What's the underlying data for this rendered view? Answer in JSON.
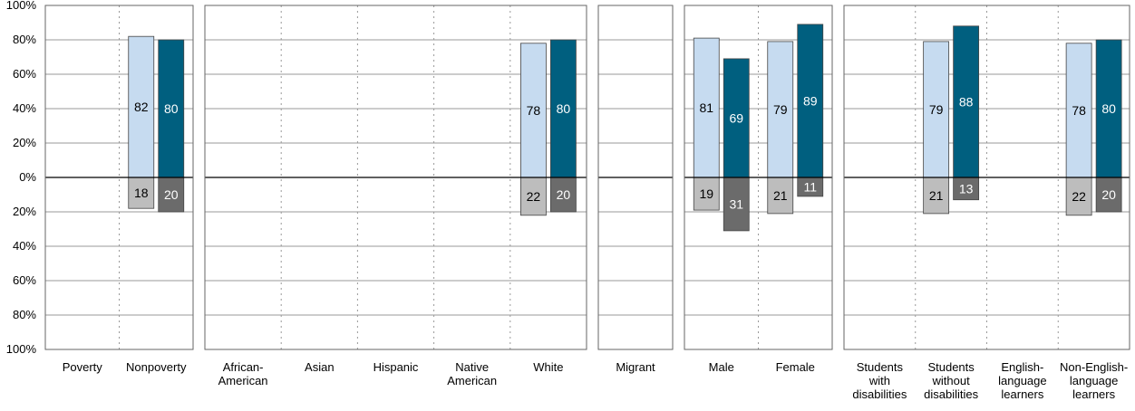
{
  "chart_data": {
    "type": "bar",
    "ylim": [
      -100,
      100
    ],
    "y_ticks": [
      {
        "value": 100,
        "label": "100%"
      },
      {
        "value": 80,
        "label": "80%"
      },
      {
        "value": 60,
        "label": "60%"
      },
      {
        "value": 40,
        "label": "40%"
      },
      {
        "value": 20,
        "label": "20%"
      },
      {
        "value": 0,
        "label": "0%"
      },
      {
        "value": -20,
        "label": "20%"
      },
      {
        "value": -40,
        "label": "40%"
      },
      {
        "value": -60,
        "label": "60%"
      },
      {
        "value": -80,
        "label": "80%"
      },
      {
        "value": -100,
        "label": "100%"
      }
    ],
    "grid": true,
    "colors": {
      "light_positive": "#c6dbf0",
      "dark_positive": "#005f7f",
      "light_negative": "#bdbdbd",
      "dark_negative": "#6b6b6b",
      "light_text": "#000000",
      "dark_text": "#ffffff"
    },
    "panels": [
      {
        "id": "poverty",
        "categories": [
          {
            "label": [
              "Poverty"
            ],
            "bars": []
          },
          {
            "label": [
              "Nonpoverty"
            ],
            "bars": [
              {
                "shade": "light",
                "positive": 82,
                "negative": 18
              },
              {
                "shade": "dark",
                "positive": 80,
                "negative": 20
              }
            ]
          }
        ]
      },
      {
        "id": "race",
        "categories": [
          {
            "label": [
              "African-",
              "American"
            ],
            "bars": []
          },
          {
            "label": [
              "Asian"
            ],
            "bars": []
          },
          {
            "label": [
              "Hispanic"
            ],
            "bars": []
          },
          {
            "label": [
              "Native",
              "American"
            ],
            "bars": []
          },
          {
            "label": [
              "White"
            ],
            "bars": [
              {
                "shade": "light",
                "positive": 78,
                "negative": 22
              },
              {
                "shade": "dark",
                "positive": 80,
                "negative": 20
              }
            ]
          }
        ]
      },
      {
        "id": "migrant",
        "categories": [
          {
            "label": [
              "Migrant"
            ],
            "bars": []
          }
        ]
      },
      {
        "id": "gender",
        "categories": [
          {
            "label": [
              "Male"
            ],
            "bars": [
              {
                "shade": "light",
                "positive": 81,
                "negative": 19
              },
              {
                "shade": "dark",
                "positive": 69,
                "negative": 31
              }
            ]
          },
          {
            "label": [
              "Female"
            ],
            "bars": [
              {
                "shade": "light",
                "positive": 79,
                "negative": 21
              },
              {
                "shade": "dark",
                "positive": 89,
                "negative": 11
              }
            ]
          }
        ]
      },
      {
        "id": "disability-language",
        "categories": [
          {
            "label": [
              "Students",
              "with",
              "disabilities"
            ],
            "bars": []
          },
          {
            "label": [
              "Students",
              "without",
              "disabilities"
            ],
            "bars": [
              {
                "shade": "light",
                "positive": 79,
                "negative": 21
              },
              {
                "shade": "dark",
                "positive": 88,
                "negative": 13
              }
            ]
          },
          {
            "label": [
              "English-",
              "language",
              "learners"
            ],
            "bars": []
          },
          {
            "label": [
              "Non-English-",
              "language",
              "learners"
            ],
            "bars": [
              {
                "shade": "light",
                "positive": 78,
                "negative": 22
              },
              {
                "shade": "dark",
                "positive": 80,
                "negative": 20
              }
            ]
          }
        ]
      }
    ]
  }
}
